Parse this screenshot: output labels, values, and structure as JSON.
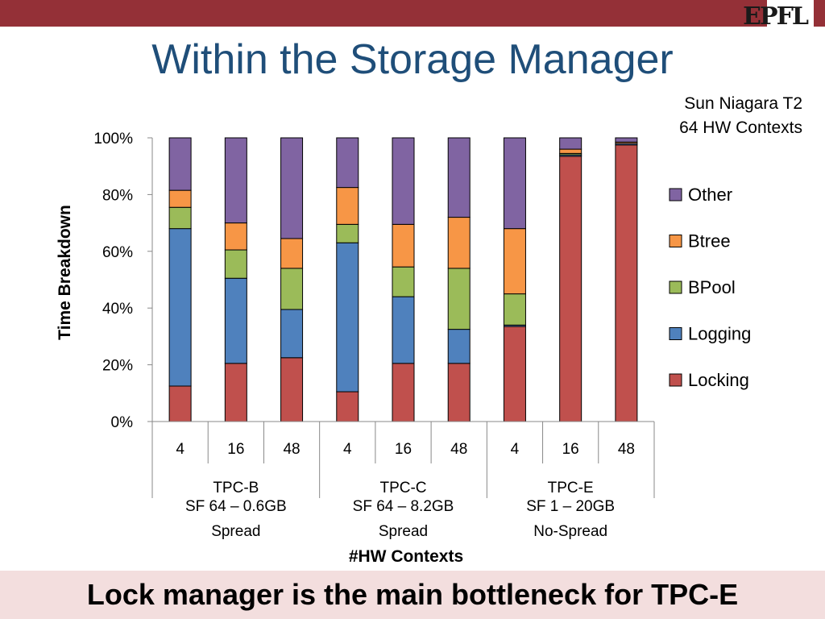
{
  "header": {
    "logo_text": "EPFL",
    "title": "Within the Storage Manager",
    "note_line1": "Sun Niagara T2",
    "note_line2": "64 HW Contexts"
  },
  "footer": {
    "text": "Lock manager is the main bottleneck for TPC-E"
  },
  "colors": {
    "header_bar": "#943037",
    "title": "#1f4e79",
    "footer_bg": "#f3dede",
    "Locking": "#c0504d",
    "Logging": "#4f81bd",
    "BPool": "#9bbb59",
    "Btree": "#f79646",
    "Other": "#8064a2"
  },
  "chart_data": {
    "type": "bar",
    "stacked": true,
    "ylabel": "Time Breakdown",
    "xlabel": "#HW Contexts",
    "ylim": [
      0,
      100
    ],
    "yticks": [
      "0%",
      "20%",
      "40%",
      "60%",
      "80%",
      "100%"
    ],
    "grid": false,
    "legend_position": "right",
    "categories": [
      "4",
      "16",
      "48",
      "4",
      "16",
      "48",
      "4",
      "16",
      "48"
    ],
    "groups": [
      {
        "name": "TPC-B",
        "line2": "SF 64 – 0.6GB",
        "line3": "Spread"
      },
      {
        "name": "TPC-C",
        "line2": "SF 64 – 8.2GB",
        "line3": "Spread"
      },
      {
        "name": "TPC-E",
        "line2": "SF 1 – 20GB",
        "line3": "No-Spread"
      }
    ],
    "series": [
      {
        "name": "Locking",
        "values": [
          12.5,
          20.5,
          22.5,
          10.5,
          20.5,
          20.5,
          33.5,
          93.5,
          97.5
        ]
      },
      {
        "name": "Logging",
        "values": [
          55.5,
          30.0,
          17.0,
          52.5,
          23.5,
          12.0,
          0.5,
          0.5,
          0.5
        ]
      },
      {
        "name": "BPool",
        "values": [
          7.5,
          10.0,
          14.5,
          6.5,
          10.5,
          21.5,
          11.0,
          0.5,
          0.0
        ]
      },
      {
        "name": "Btree",
        "values": [
          6.0,
          9.5,
          10.5,
          13.0,
          15.0,
          18.0,
          23.0,
          1.5,
          0.5
        ]
      },
      {
        "name": "Other",
        "values": [
          18.5,
          30.0,
          35.5,
          17.5,
          30.5,
          28.0,
          32.0,
          4.0,
          1.5
        ]
      }
    ]
  }
}
